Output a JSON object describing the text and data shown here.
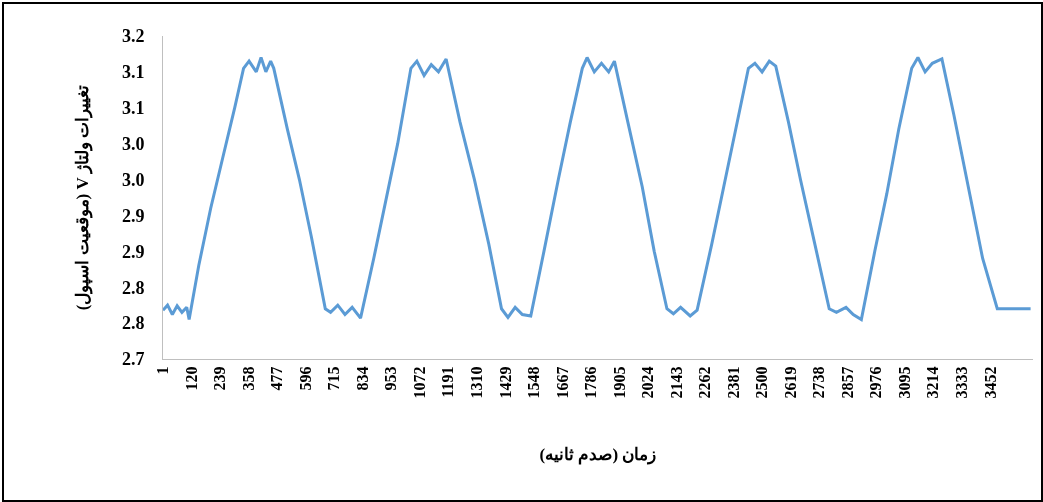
{
  "chart_data": {
    "type": "line",
    "xlabel": "زمان (صدم ثانیه)",
    "ylabel": "تغییرات ولتاژ V (موقعیت اسپول)",
    "x": [
      1,
      20,
      40,
      60,
      80,
      100,
      110,
      150,
      200,
      250,
      300,
      337,
      360,
      390,
      410,
      430,
      450,
      463,
      520,
      570,
      620,
      678,
      700,
      730,
      760,
      790,
      825,
      880,
      930,
      980,
      1035,
      1060,
      1090,
      1120,
      1150,
      1182,
      1240,
      1300,
      1360,
      1413,
      1440,
      1470,
      1500,
      1535,
      1590,
      1650,
      1700,
      1750,
      1770,
      1800,
      1830,
      1860,
      1884,
      1940,
      2000,
      2050,
      2103,
      2130,
      2160,
      2200,
      2229,
      2290,
      2340,
      2390,
      2443,
      2470,
      2500,
      2530,
      2557,
      2610,
      2660,
      2720,
      2780,
      2810,
      2850,
      2880,
      2914,
      2970,
      3020,
      3070,
      3124,
      3150,
      3180,
      3210,
      3250,
      3300,
      3360,
      3420,
      3481,
      3500,
      3620
    ],
    "series": [
      {
        "color": "#5b9bd5",
        "values": [
          2.768,
          2.775,
          2.762,
          2.774,
          2.765,
          2.772,
          2.755,
          2.83,
          2.91,
          2.98,
          3.05,
          3.105,
          3.115,
          3.1,
          3.12,
          3.1,
          3.115,
          3.105,
          3.02,
          2.95,
          2.87,
          2.77,
          2.765,
          2.775,
          2.762,
          2.772,
          2.757,
          2.84,
          2.92,
          3.0,
          3.105,
          3.115,
          3.095,
          3.11,
          3.1,
          3.118,
          3.03,
          2.95,
          2.86,
          2.77,
          2.758,
          2.772,
          2.762,
          2.76,
          2.85,
          2.95,
          3.03,
          3.105,
          3.12,
          3.1,
          3.112,
          3.1,
          3.115,
          3.03,
          2.94,
          2.85,
          2.77,
          2.763,
          2.772,
          2.76,
          2.768,
          2.86,
          2.94,
          3.02,
          3.105,
          3.112,
          3.1,
          3.115,
          3.108,
          3.03,
          2.95,
          2.86,
          2.77,
          2.765,
          2.772,
          2.762,
          2.755,
          2.85,
          2.93,
          3.02,
          3.105,
          3.12,
          3.1,
          3.112,
          3.118,
          3.04,
          2.94,
          2.84,
          2.77,
          2.77,
          2.77
        ]
      }
    ],
    "xlim": [
      1,
      3630
    ],
    "xticks": [
      1,
      120,
      239,
      358,
      477,
      596,
      715,
      834,
      953,
      1072,
      1191,
      1310,
      1429,
      1548,
      1667,
      1786,
      1905,
      2024,
      2143,
      2262,
      2381,
      2500,
      2619,
      2738,
      2857,
      2976,
      3095,
      3214,
      3333,
      3452
    ],
    "ylim": [
      2.7,
      3.15
    ],
    "yticks": [
      {
        "value": 2.7,
        "label": "2.7"
      },
      {
        "value": 2.75,
        "label": "2.8"
      },
      {
        "value": 2.8,
        "label": "2.8"
      },
      {
        "value": 2.85,
        "label": "2.9"
      },
      {
        "value": 2.9,
        "label": "2.9"
      },
      {
        "value": 2.95,
        "label": "3.0"
      },
      {
        "value": 3.0,
        "label": "3.0"
      },
      {
        "value": 3.05,
        "label": "3.1"
      },
      {
        "value": 3.1,
        "label": "3.1"
      },
      {
        "value": 3.15,
        "label": "3.2"
      }
    ],
    "grid": false,
    "marker": "none",
    "line_style": "solid"
  }
}
